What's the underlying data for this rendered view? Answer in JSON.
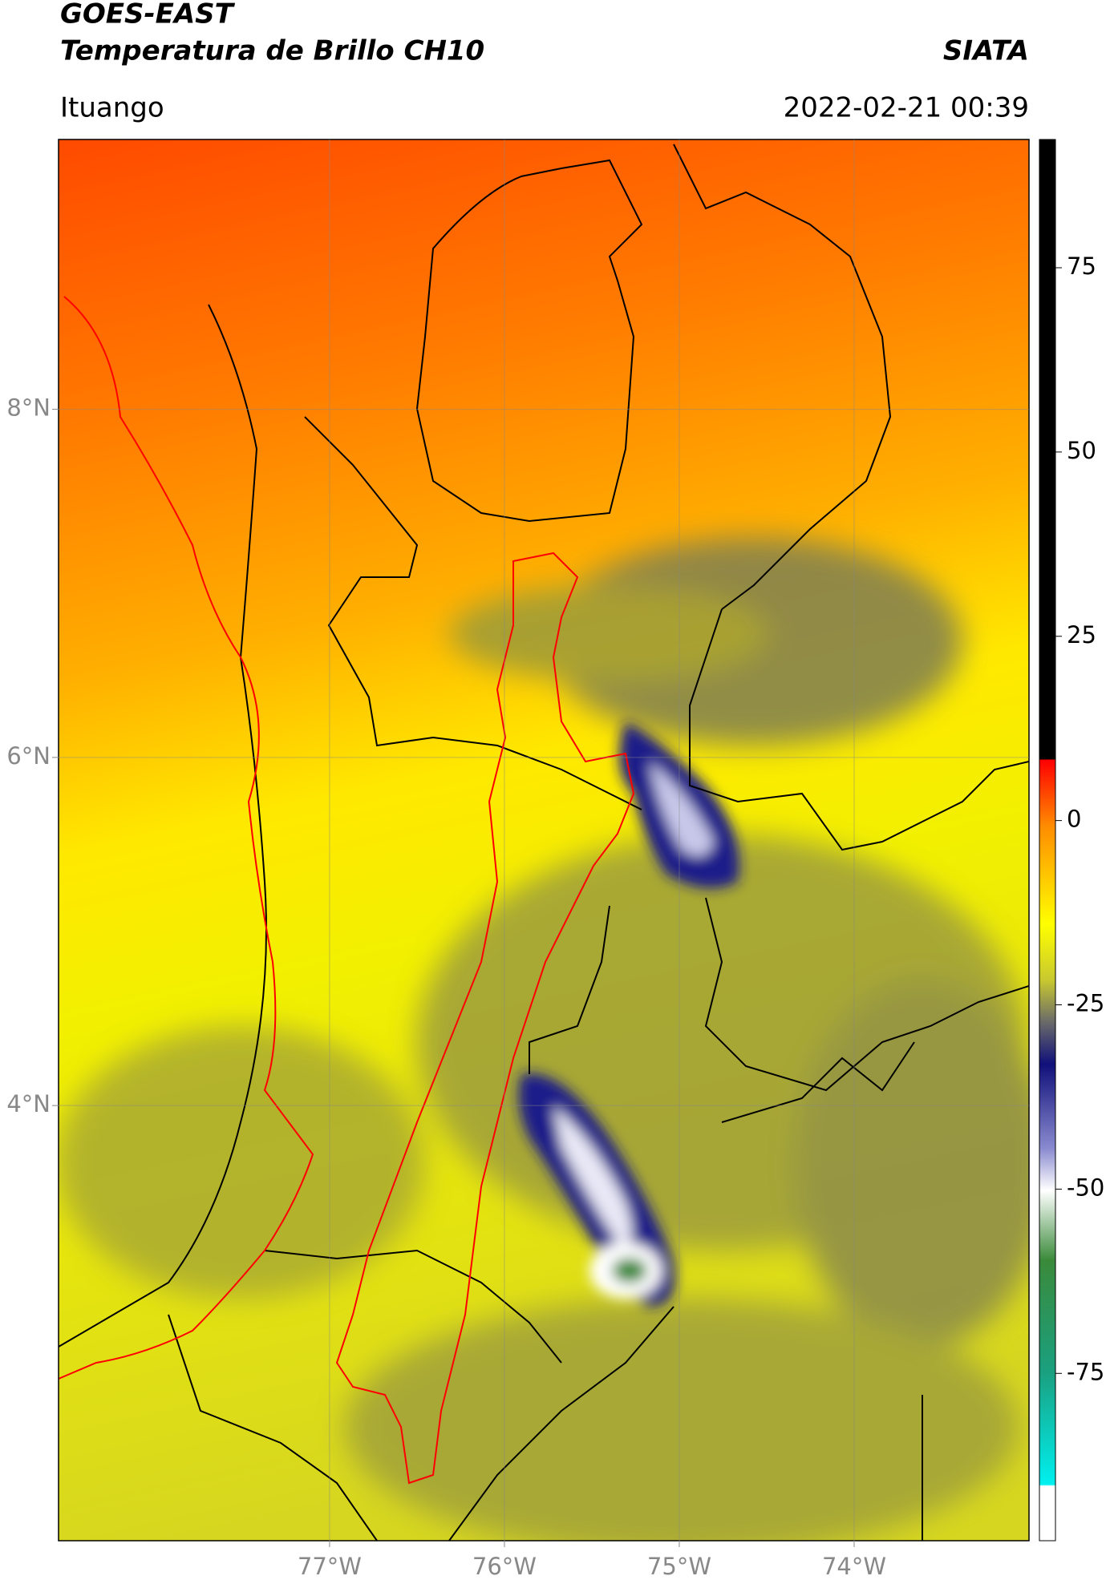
{
  "header": {
    "title": "GOES-EAST",
    "subtitle": "Temperatura de Brillo CH10",
    "source": "SIATA",
    "location": "Ituango",
    "datetime": "2022-02-21 00:39"
  },
  "map": {
    "xlim": [
      -78.55,
      -73.0
    ],
    "ylim": [
      1.5,
      9.55
    ],
    "xticks": [
      {
        "value": -77,
        "label": "77°W"
      },
      {
        "value": -76,
        "label": "76°W"
      },
      {
        "value": -75,
        "label": "75°W"
      },
      {
        "value": -74,
        "label": "74°W"
      }
    ],
    "yticks": [
      {
        "value": 8,
        "label": "8°N"
      },
      {
        "value": 6,
        "label": "6°N"
      },
      {
        "value": 4,
        "label": "4°N"
      }
    ],
    "grid": true
  },
  "colorbar": {
    "range": [
      -97.7,
      92.4
    ],
    "ticks": [
      75,
      50,
      25,
      0,
      -25,
      -50,
      -75
    ]
  }
}
